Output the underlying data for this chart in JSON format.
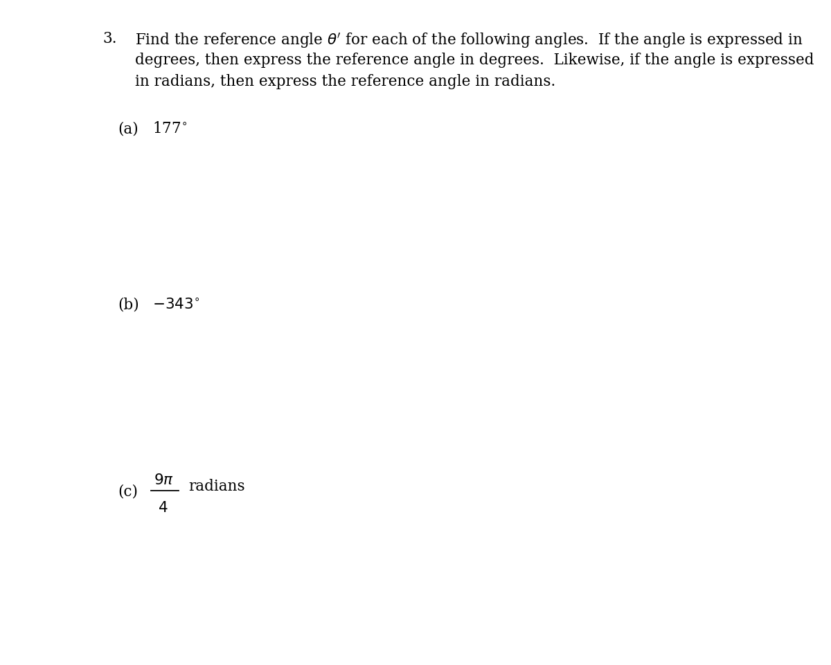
{
  "background_color": "#ffffff",
  "fig_width": 12.0,
  "fig_height": 9.62,
  "dpi": 100,
  "problem_number": "3.",
  "intro_line1": "Find the reference angle $\\theta'$ for each of the following angles.  If the angle is expressed in",
  "intro_line2": "degrees, then express the reference angle in degrees.  Likewise, if the angle is expressed",
  "intro_line3": "in radians, then express the reference angle in radians.",
  "part_a_label": "(a)",
  "part_a_text": "177$^{\\circ}$",
  "part_b_label": "(b)",
  "part_b_text": "$-343^{\\circ}$",
  "part_c_label": "(c)",
  "part_c_frac_num": "$9\\pi$",
  "part_c_frac_den": "$4$",
  "part_c_suffix": "radians",
  "font_size_intro": 15.5,
  "font_size_parts": 15.5,
  "font_family": "DejaVu Serif"
}
